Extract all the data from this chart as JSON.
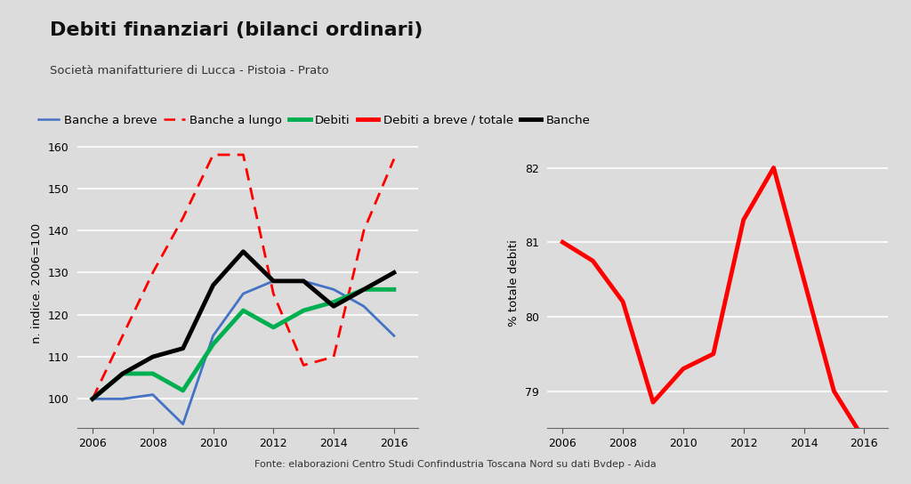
{
  "title": "Debiti finanziari (bilanci ordinari)",
  "subtitle": "Società manifatturiere di Lucca - Pistoia - Prato",
  "footer": "Fonte: elaborazioni Centro Studi Confindustria Toscana Nord su dati Bvdep - Aida",
  "background_color": "#dcdcdc",
  "left_chart": {
    "years": [
      2006,
      2007,
      2008,
      2009,
      2010,
      2011,
      2012,
      2013,
      2014,
      2015,
      2016
    ],
    "banche_a_breve": [
      100,
      100,
      101,
      94,
      115,
      125,
      128,
      128,
      126,
      122,
      115
    ],
    "banche_a_lungo": [
      100,
      115,
      130,
      143,
      158,
      158,
      125,
      108,
      110,
      140,
      157
    ],
    "debiti": [
      100,
      106,
      106,
      102,
      113,
      121,
      117,
      121,
      123,
      126,
      126
    ],
    "banche": [
      100,
      106,
      110,
      112,
      127,
      135,
      128,
      128,
      122,
      126,
      130
    ],
    "ylabel": "n. indice. 2006=100",
    "ylim": [
      93,
      162
    ],
    "yticks": [
      100,
      110,
      120,
      130,
      140,
      150,
      160
    ]
  },
  "right_chart": {
    "years": [
      2006,
      2007,
      2008,
      2009,
      2010,
      2011,
      2012,
      2013,
      2014,
      2015,
      2016
    ],
    "debiti_a_breve_totale": [
      81.0,
      80.75,
      80.2,
      78.85,
      79.3,
      79.5,
      81.3,
      82.0,
      80.5,
      79.0,
      78.35
    ],
    "ylabel": "% totale debiti",
    "ylim": [
      78.5,
      82.4
    ],
    "yticks": [
      79,
      80,
      81,
      82
    ]
  },
  "colors": {
    "banche_a_breve": "#4472C4",
    "banche_a_lungo": "#FF0000",
    "debiti": "#00B050",
    "debiti_a_breve_totale": "#FF0000",
    "banche": "#000000"
  }
}
